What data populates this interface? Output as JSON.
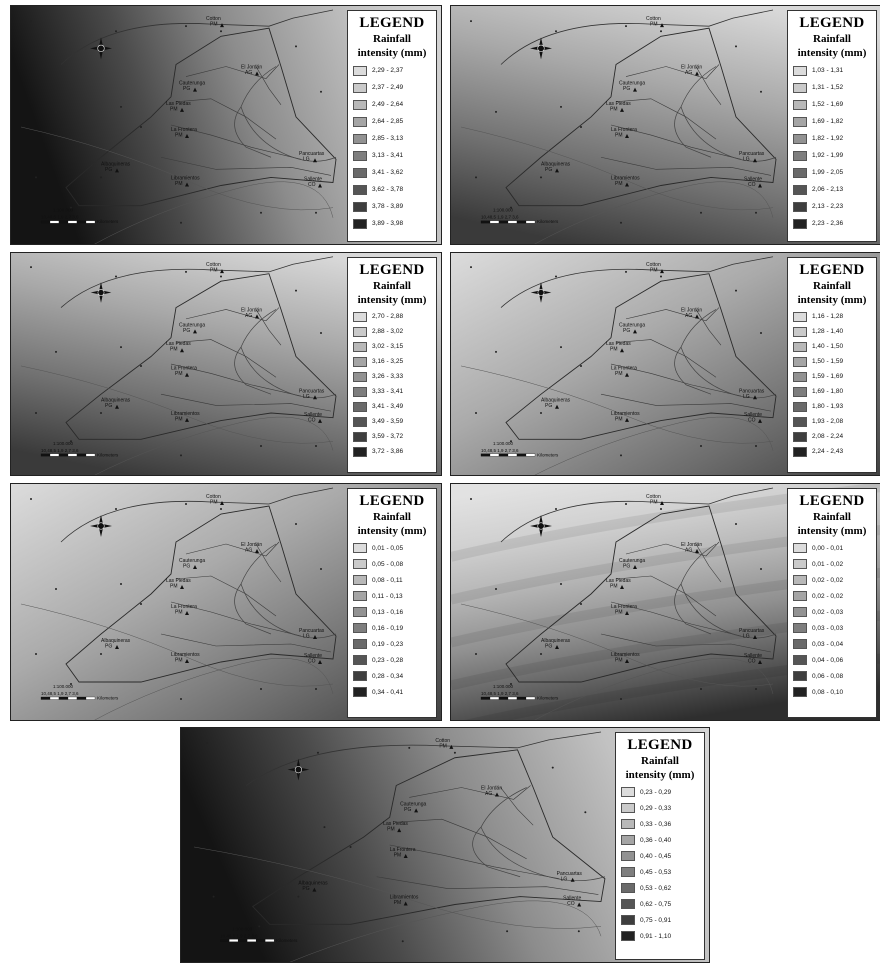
{
  "legend_title": "LEGEND",
  "legend_subtitle_1": "Rainfall",
  "legend_subtitle_2": "intensity (mm)",
  "scale_text": "1:100.000",
  "scale_ticks": "10,48,5  1,9  2,7  3,6",
  "scale_units": "Kilometers",
  "places": {
    "cotton": "Cotton PM",
    "cauterunga": "Cauterunga PG",
    "el_jordan": "El Jordán AG",
    "las_piedas": "Las Piedas PM",
    "la_frontera": "La Frontera PM",
    "albaquineras": "Albaquineras PG",
    "libramientos": "Libramientos PM",
    "pancuartas": "Pancuartas LG",
    "sallente": "Sallente CO"
  },
  "swatch_colors": [
    "#dcdcdc",
    "#cacaca",
    "#b8b8b8",
    "#a5a5a5",
    "#929292",
    "#7e7e7e",
    "#6a6a6a",
    "#555555",
    "#3e3e3e",
    "#222222"
  ],
  "panels": [
    {
      "name": "map-1",
      "gradient": "leftdark",
      "legend": [
        "2,29 - 2,37",
        "2,37 - 2,49",
        "2,49 - 2,64",
        "2,64 - 2,85",
        "2,85 - 3,13",
        "3,13 - 3,41",
        "3,41 - 3,62",
        "3,62 - 3,78",
        "3,78 - 3,89",
        "3,89 - 3,98"
      ]
    },
    {
      "name": "map-2",
      "gradient": "bottomdark",
      "legend": [
        "1,03 - 1,31",
        "1,31 - 1,52",
        "1,52 - 1,69",
        "1,69 - 1,82",
        "1,82 - 1,92",
        "1,92 - 1,99",
        "1,99 - 2,05",
        "2,06 - 2,13",
        "2,13 - 2,23",
        "2,23 - 2,36"
      ]
    },
    {
      "name": "map-3",
      "gradient": "bottomdark",
      "legend": [
        "2,70 - 2,88",
        "2,88 - 3,02",
        "3,02 - 3,15",
        "3,16 - 3,25",
        "3,26 - 3,33",
        "3,33 - 3,41",
        "3,41 - 3,49",
        "3,49 - 3,59",
        "3,59 - 3,72",
        "3,72 - 3,86"
      ]
    },
    {
      "name": "map-4",
      "gradient": "diagonal",
      "legend": [
        "1,16 - 1,28",
        "1,28 - 1,40",
        "1,40 - 1,50",
        "1,50 - 1,59",
        "1,59 - 1,69",
        "1,69 - 1,80",
        "1,80 - 1,93",
        "1,93 - 2,08",
        "2,08 - 2,24",
        "2,24 - 2,43"
      ]
    },
    {
      "name": "map-5",
      "gradient": "diagonal",
      "legend": [
        "0,01 - 0,05",
        "0,05 - 0,08",
        "0,08 - 0,11",
        "0,11 - 0,13",
        "0,13 - 0,16",
        "0,16 - 0,19",
        "0,19 - 0,23",
        "0,23 - 0,28",
        "0,28 - 0,34",
        "0,34 - 0,41"
      ]
    },
    {
      "name": "map-6",
      "gradient": "bands",
      "legend": [
        "0,00 - 0,01",
        "0,01 - 0,02",
        "0,02 - 0,02",
        "0,02 - 0,02",
        "0,02 - 0,03",
        "0,03 - 0,03",
        "0,03 - 0,04",
        "0,04 - 0,06",
        "0,06 - 0,08",
        "0,08 - 0,10"
      ]
    },
    {
      "name": "map-7",
      "gradient": "leftdark",
      "legend": [
        "0,23 - 0,29",
        "0,29 - 0,33",
        "0,33 - 0,36",
        "0,36 - 0,40",
        "0,40 - 0,45",
        "0,45 - 0,53",
        "0,53 - 0,62",
        "0,62 - 0,75",
        "0,75 - 0,91",
        "0,91 - 1,10"
      ]
    }
  ]
}
